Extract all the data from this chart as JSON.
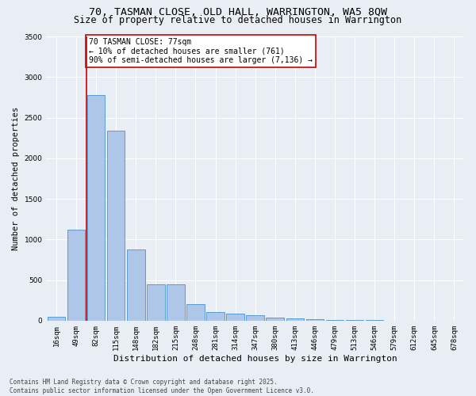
{
  "title_line1": "70, TASMAN CLOSE, OLD HALL, WARRINGTON, WA5 8QW",
  "title_line2": "Size of property relative to detached houses in Warrington",
  "xlabel": "Distribution of detached houses by size in Warrington",
  "ylabel": "Number of detached properties",
  "bar_color": "#aec6e8",
  "bar_edge_color": "#5b9bd5",
  "background_color": "#e8eef4",
  "grid_color": "#ffffff",
  "categories": [
    "16sqm",
    "49sqm",
    "82sqm",
    "115sqm",
    "148sqm",
    "182sqm",
    "215sqm",
    "248sqm",
    "281sqm",
    "314sqm",
    "347sqm",
    "380sqm",
    "413sqm",
    "446sqm",
    "479sqm",
    "513sqm",
    "546sqm",
    "579sqm",
    "612sqm",
    "645sqm",
    "678sqm"
  ],
  "values": [
    45,
    1120,
    2780,
    2340,
    880,
    450,
    450,
    200,
    110,
    90,
    65,
    40,
    25,
    20,
    10,
    5,
    5,
    3,
    2,
    2,
    2
  ],
  "ylim": [
    0,
    3500
  ],
  "yticks": [
    0,
    500,
    1000,
    1500,
    2000,
    2500,
    3000,
    3500
  ],
  "vline_x_index": 2,
  "vline_color": "#cc0000",
  "annotation_text": "70 TASMAN CLOSE: 77sqm\n← 10% of detached houses are smaller (761)\n90% of semi-detached houses are larger (7,136) →",
  "annotation_box_color": "#ffffff",
  "annotation_box_edge": "#cc0000",
  "footer_line1": "Contains HM Land Registry data © Crown copyright and database right 2025.",
  "footer_line2": "Contains public sector information licensed under the Open Government Licence v3.0.",
  "title_fontsize": 9.5,
  "subtitle_fontsize": 8.5,
  "tick_fontsize": 6.5,
  "ylabel_fontsize": 7.5,
  "xlabel_fontsize": 8,
  "annotation_fontsize": 7,
  "footer_fontsize": 5.5
}
